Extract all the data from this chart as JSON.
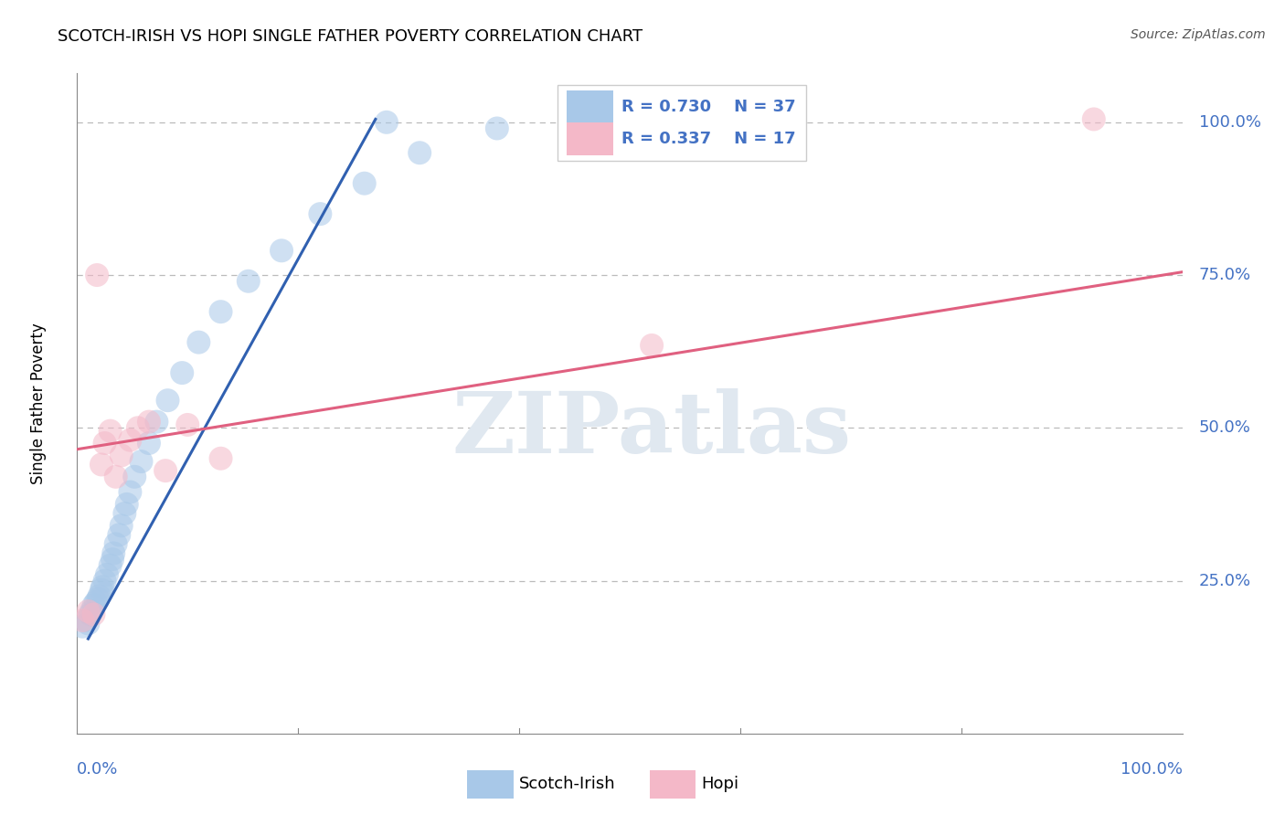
{
  "title": "SCOTCH-IRISH VS HOPI SINGLE FATHER POVERTY CORRELATION CHART",
  "source": "Source: ZipAtlas.com",
  "ylabel": "Single Father Poverty",
  "ytick_labels": [
    "25.0%",
    "50.0%",
    "75.0%",
    "100.0%"
  ],
  "ytick_values": [
    0.25,
    0.5,
    0.75,
    1.0
  ],
  "xlim": [
    0.0,
    1.0
  ],
  "ylim": [
    0.0,
    1.08
  ],
  "blue_R": 0.73,
  "blue_N": 37,
  "pink_R": 0.337,
  "pink_N": 17,
  "blue_color": "#A8C8E8",
  "pink_color": "#F4B8C8",
  "blue_line_color": "#3060B0",
  "pink_line_color": "#E06080",
  "watermark": "ZIPatlas",
  "scotch_irish_x": [
    0.005,
    0.008,
    0.01,
    0.012,
    0.013,
    0.015,
    0.017,
    0.019,
    0.02,
    0.022,
    0.023,
    0.025,
    0.027,
    0.03,
    0.032,
    0.033,
    0.035,
    0.038,
    0.04,
    0.043,
    0.045,
    0.048,
    0.052,
    0.058,
    0.065,
    0.072,
    0.082,
    0.095,
    0.11,
    0.13,
    0.155,
    0.185,
    0.22,
    0.26,
    0.31,
    0.38,
    0.28
  ],
  "scotch_irish_y": [
    0.175,
    0.185,
    0.18,
    0.195,
    0.2,
    0.21,
    0.215,
    0.22,
    0.225,
    0.235,
    0.24,
    0.25,
    0.26,
    0.275,
    0.285,
    0.295,
    0.31,
    0.325,
    0.34,
    0.36,
    0.375,
    0.395,
    0.42,
    0.445,
    0.475,
    0.51,
    0.545,
    0.59,
    0.64,
    0.69,
    0.74,
    0.79,
    0.85,
    0.9,
    0.95,
    0.99,
    1.0
  ],
  "hopi_x": [
    0.005,
    0.01,
    0.015,
    0.018,
    0.022,
    0.025,
    0.03,
    0.035,
    0.04,
    0.048,
    0.055,
    0.065,
    0.08,
    0.1,
    0.13,
    0.52,
    0.92
  ],
  "hopi_y": [
    0.185,
    0.2,
    0.195,
    0.75,
    0.44,
    0.475,
    0.495,
    0.42,
    0.455,
    0.48,
    0.5,
    0.51,
    0.43,
    0.505,
    0.45,
    0.635,
    1.005
  ],
  "blue_line_x": [
    0.01,
    0.27
  ],
  "blue_line_y": [
    0.155,
    1.005
  ],
  "pink_line_x": [
    0.0,
    1.0
  ],
  "pink_line_y": [
    0.465,
    0.755
  ]
}
